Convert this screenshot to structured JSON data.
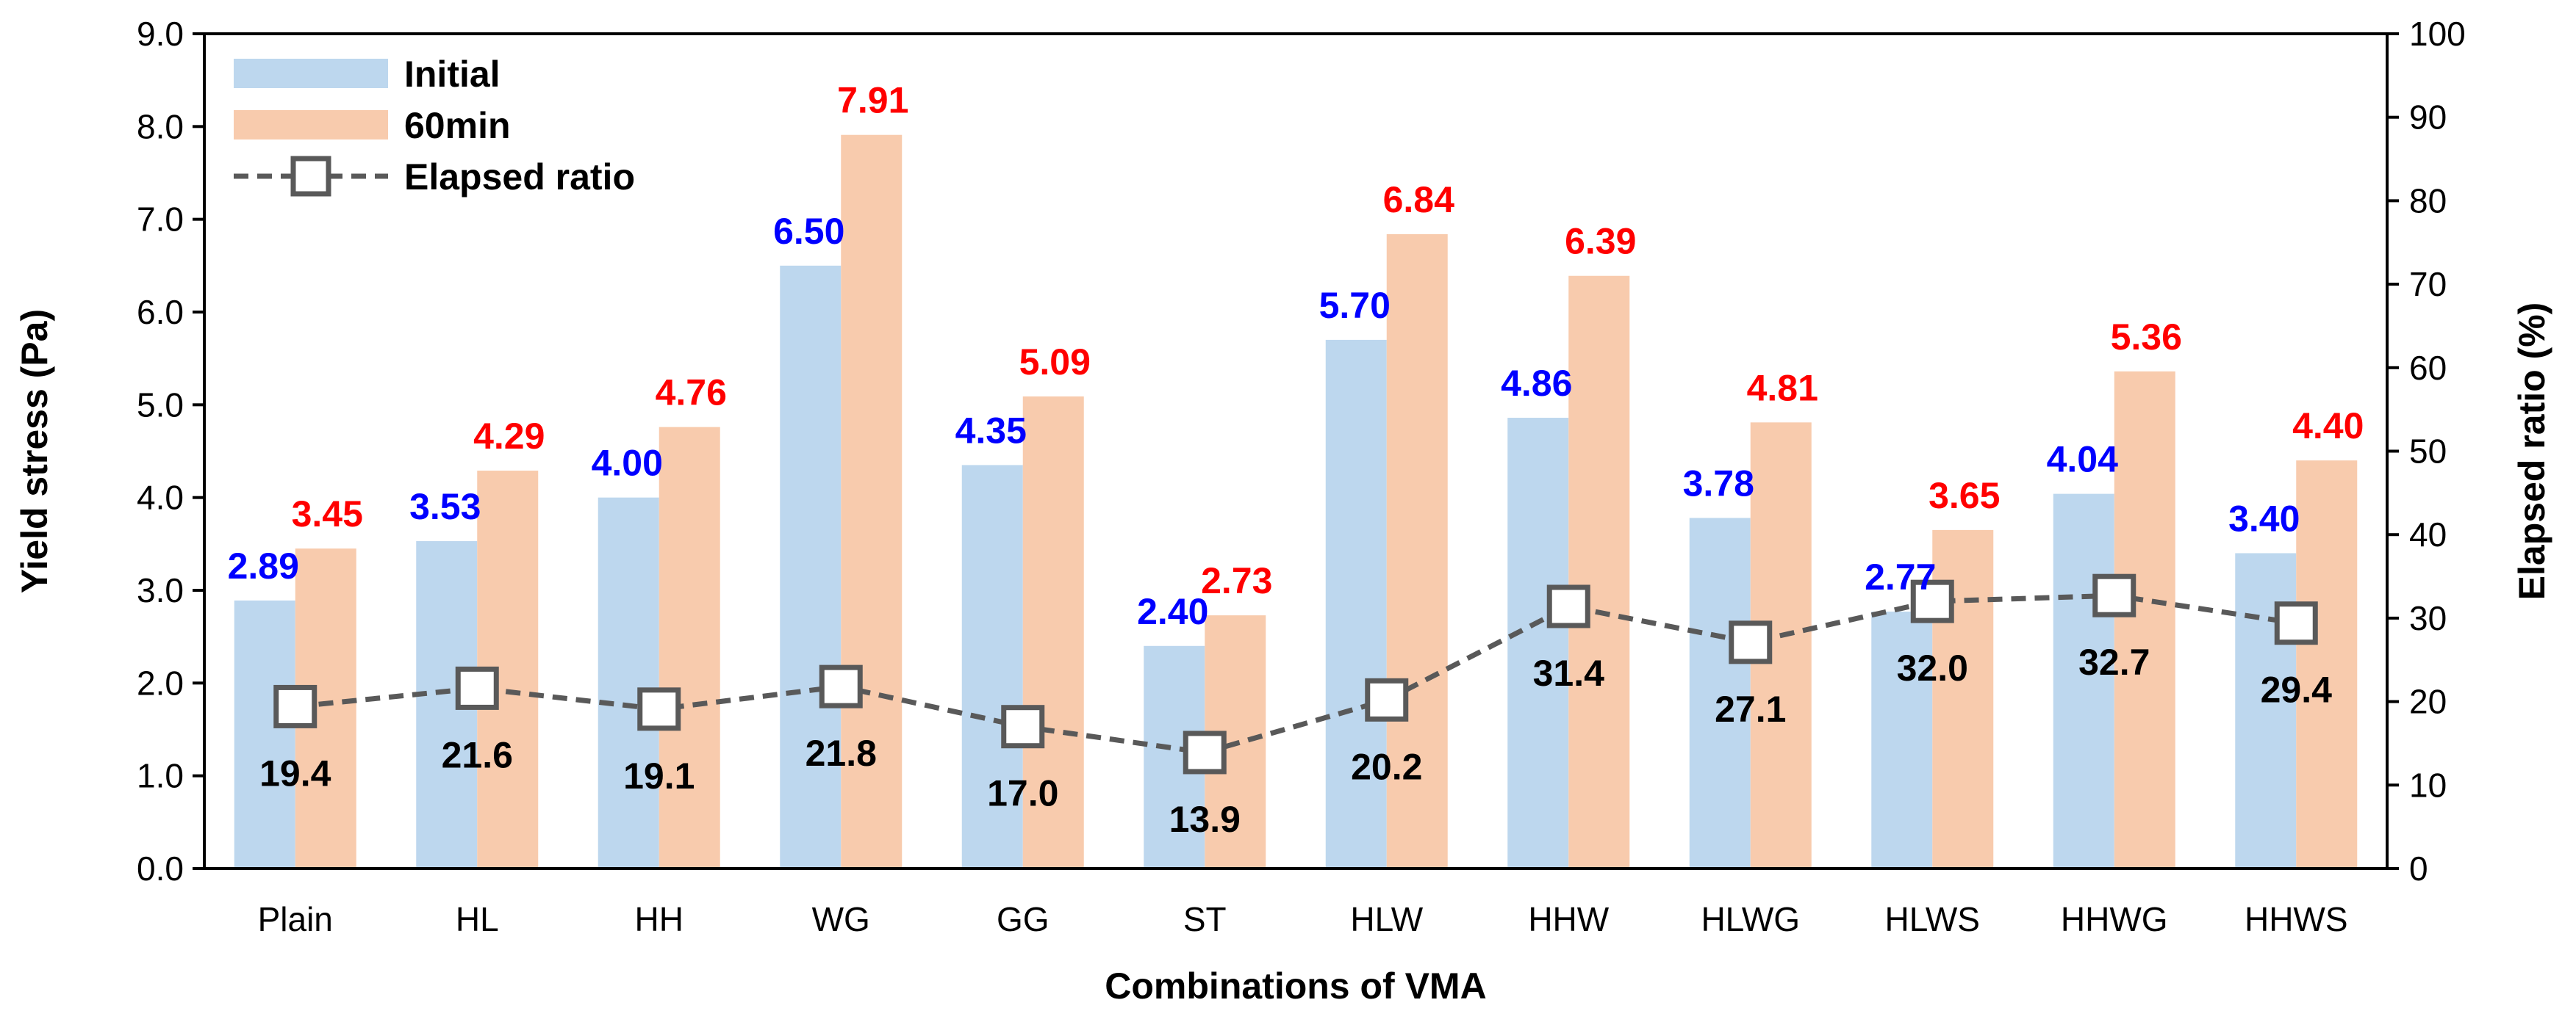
{
  "chart_data": {
    "type": "bar",
    "xlabel": "Combinations of VMA",
    "ylabel": "Yield stress (Pa)",
    "y2label": "Elapsed ratio (%)",
    "ylim": [
      0,
      9
    ],
    "y2lim": [
      0,
      100
    ],
    "yticks": [
      "0.0",
      "1.0",
      "2.0",
      "3.0",
      "4.0",
      "5.0",
      "6.0",
      "7.0",
      "8.0",
      "9.0"
    ],
    "y2ticks": [
      "0",
      "10",
      "20",
      "30",
      "40",
      "50",
      "60",
      "70",
      "80",
      "90",
      "100"
    ],
    "categories": [
      "Plain",
      "HL",
      "HH",
      "WG",
      "GG",
      "ST",
      "HLW",
      "HHW",
      "HLWG",
      "HLWS",
      "HHWG",
      "HHWS"
    ],
    "series": [
      {
        "name": "Initial",
        "type": "bar",
        "axis": "left",
        "color": "#bdd7ee",
        "label_color": "#0000ff",
        "values": [
          2.89,
          3.53,
          4.0,
          6.5,
          4.35,
          2.4,
          5.7,
          4.86,
          3.78,
          2.77,
          4.04,
          3.4
        ],
        "labels": [
          "2.89",
          "3.53",
          "4.00",
          "6.50",
          "4.35",
          "2.40",
          "5.70",
          "4.86",
          "3.78",
          "2.77",
          "4.04",
          "3.40"
        ]
      },
      {
        "name": "60min",
        "type": "bar",
        "axis": "left",
        "color": "#f8cbad",
        "label_color": "#ff0000",
        "values": [
          3.45,
          4.29,
          4.76,
          7.91,
          5.09,
          2.73,
          6.84,
          6.39,
          4.81,
          3.65,
          5.36,
          4.4
        ],
        "labels": [
          "3.45",
          "4.29",
          "4.76",
          "7.91",
          "5.09",
          "2.73",
          "6.84",
          "6.39",
          "4.81",
          "3.65",
          "5.36",
          "4.40"
        ]
      },
      {
        "name": "Elapsed ratio",
        "type": "line",
        "axis": "right",
        "color": "#595959",
        "label_color": "#000000",
        "values": [
          19.4,
          21.6,
          19.1,
          21.8,
          17.0,
          13.9,
          20.2,
          31.4,
          27.1,
          32.0,
          32.7,
          29.4
        ],
        "labels": [
          "19.4",
          "21.6",
          "19.1",
          "21.8",
          "17.0",
          "13.9",
          "20.2",
          "31.4",
          "27.1",
          "32.0",
          "32.7",
          "29.4"
        ]
      }
    ],
    "legend": {
      "position": "top-left",
      "items": [
        "Initial",
        "60min",
        "Elapsed ratio"
      ]
    },
    "grid": false
  }
}
